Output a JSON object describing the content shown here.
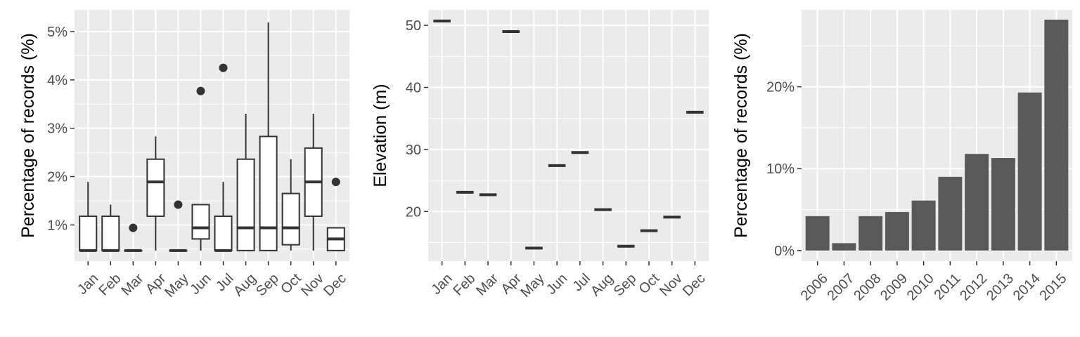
{
  "chart_data": [
    {
      "type": "box",
      "ylabel": "Percentage of records (%)",
      "xlabel": "",
      "ylim": [
        0.25,
        5.45
      ],
      "y_ticks": [
        1,
        2,
        3,
        4,
        5
      ],
      "y_tick_labels": [
        "1%",
        "2%",
        "3%",
        "4%",
        "5%"
      ],
      "categories": [
        "Jan",
        "Feb",
        "Mar",
        "Apr",
        "May",
        "Jun",
        "Jul",
        "Aug",
        "Sep",
        "Oct",
        "Nov",
        "Dec"
      ],
      "boxes": [
        {
          "min": 0.47,
          "q1": 0.47,
          "median": 0.47,
          "q3": 1.18,
          "max": 1.89,
          "outliers": []
        },
        {
          "min": 0.47,
          "q1": 0.47,
          "median": 0.47,
          "q3": 1.18,
          "max": 1.42,
          "outliers": []
        },
        {
          "min": 0.47,
          "q1": 0.47,
          "median": 0.47,
          "q3": 0.47,
          "max": 0.47,
          "outliers": [
            0.94
          ]
        },
        {
          "min": 0.47,
          "q1": 1.18,
          "median": 1.89,
          "q3": 2.36,
          "max": 2.83,
          "outliers": []
        },
        {
          "min": 0.47,
          "q1": 0.47,
          "median": 0.47,
          "q3": 0.47,
          "max": 0.47,
          "outliers": [
            1.42
          ]
        },
        {
          "min": 0.47,
          "q1": 0.71,
          "median": 0.94,
          "q3": 1.42,
          "max": 1.42,
          "outliers": [
            3.77
          ]
        },
        {
          "min": 0.47,
          "q1": 0.47,
          "median": 0.47,
          "q3": 1.18,
          "max": 1.89,
          "outliers": [
            4.25
          ]
        },
        {
          "min": 0.47,
          "q1": 0.47,
          "median": 0.94,
          "q3": 2.36,
          "max": 3.3,
          "outliers": []
        },
        {
          "min": 0.47,
          "q1": 0.47,
          "median": 0.94,
          "q3": 2.83,
          "max": 5.19,
          "outliers": []
        },
        {
          "min": 0.47,
          "q1": 0.59,
          "median": 0.94,
          "q3": 1.65,
          "max": 2.36,
          "outliers": []
        },
        {
          "min": 0.47,
          "q1": 1.18,
          "median": 1.89,
          "q3": 2.59,
          "max": 3.3,
          "outliers": []
        },
        {
          "min": 0.47,
          "q1": 0.47,
          "median": 0.71,
          "q3": 0.94,
          "max": 0.94,
          "outliers": [
            1.89
          ]
        }
      ],
      "grid": true,
      "legend": "none"
    },
    {
      "type": "box",
      "ylabel": "Elevation (m)",
      "xlabel": "",
      "ylim": [
        12,
        52.5
      ],
      "y_ticks": [
        20,
        30,
        40,
        50
      ],
      "y_tick_labels": [
        "20",
        "30",
        "40",
        "50"
      ],
      "categories": [
        "Jan",
        "Feb",
        "Mar",
        "Apr",
        "May",
        "Jun",
        "Jul",
        "Aug",
        "Sep",
        "Oct",
        "Nov",
        "Dec"
      ],
      "values": [
        50.7,
        23.1,
        22.7,
        49.0,
        14.1,
        27.4,
        29.5,
        20.3,
        14.4,
        16.9,
        19.1,
        36.0
      ],
      "grid": true,
      "legend": "none"
    },
    {
      "type": "bar",
      "ylabel": "Percentage of records (%)",
      "xlabel": "",
      "ylim": [
        -1.3,
        29.4
      ],
      "y_ticks": [
        0,
        10,
        20
      ],
      "y_tick_labels": [
        "0%",
        "10%",
        "20%"
      ],
      "categories": [
        "2006",
        "2007",
        "2008",
        "2009",
        "2010",
        "2011",
        "2012",
        "2013",
        "2014",
        "2015"
      ],
      "values": [
        4.2,
        0.9,
        4.2,
        4.7,
        6.1,
        9.0,
        11.8,
        11.3,
        19.3,
        28.2
      ],
      "grid": true,
      "legend": "none"
    }
  ],
  "colors": {
    "panel_background": "#ebebeb",
    "grid": "#ffffff",
    "box_line": "#333333",
    "bar_fill": "#595959",
    "tick_text": "#4d4d4d",
    "title_text": "#000000"
  }
}
